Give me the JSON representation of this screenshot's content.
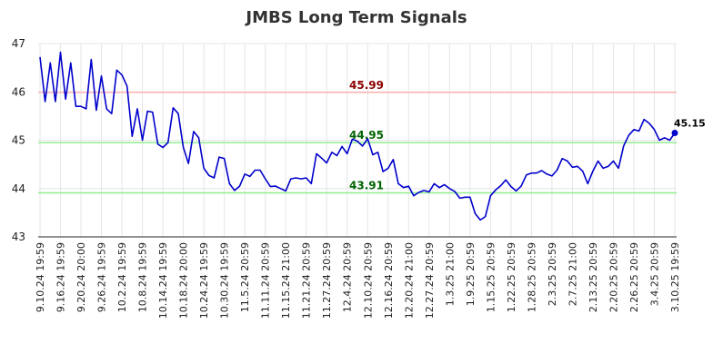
{
  "chart_data": {
    "type": "line",
    "title": "JMBS Long Term Signals",
    "xlabel": "",
    "ylabel": "",
    "ylim": [
      43,
      47
    ],
    "yticks": [
      43,
      44,
      45,
      46,
      47
    ],
    "grid": true,
    "x_tick_labels": [
      "9.10.24 19:59",
      "9.16.24 19:59",
      "9.20.24 20:00",
      "9.26.24 19:59",
      "10.2.24 19:59",
      "10.8.24 19:59",
      "10.14.24 19:59",
      "10.18.24 20:00",
      "10.24.24 19:59",
      "10.30.24 19:59",
      "11.5.24 20:59",
      "11.11.24 20:59",
      "11.15.24 21:00",
      "11.21.24 20:59",
      "11.27.24 20:59",
      "12.4.24 20:59",
      "12.10.24 20:59",
      "12.16.24 20:59",
      "12.20.24 21:00",
      "12.27.24 20:59",
      "1.3.25 21:00",
      "1.9.25 20:59",
      "1.15.25 20:59",
      "1.22.25 20:59",
      "1.28.25 20:59",
      "2.3.25 20:59",
      "2.7.25 21:00",
      "2.13.25 20:59",
      "2.20.25 20:59",
      "2.26.25 20:59",
      "3.4.25 20:59",
      "3.10.25 19:59"
    ],
    "reference_lines": [
      {
        "value": 45.99,
        "label": "45.99",
        "color": "#ffb3b3",
        "label_color": "#8b0000"
      },
      {
        "value": 44.95,
        "label": "44.95",
        "color": "#90ee90",
        "label_color": "#006400"
      },
      {
        "value": 43.91,
        "label": "43.91",
        "color": "#90ee90",
        "label_color": "#006400"
      }
    ],
    "series": [
      {
        "color": "#0000cc",
        "values": [
          46.72,
          45.8,
          46.6,
          45.8,
          46.82,
          45.85,
          46.6,
          45.7,
          45.7,
          45.65,
          46.67,
          45.62,
          46.33,
          45.65,
          45.55,
          46.45,
          46.35,
          46.12,
          45.08,
          45.65,
          45.0,
          45.6,
          45.58,
          44.92,
          44.85,
          44.95,
          45.67,
          45.55,
          44.85,
          44.52,
          45.18,
          45.05,
          44.42,
          44.27,
          44.22,
          44.65,
          44.62,
          44.1,
          43.96,
          44.05,
          44.3,
          44.25,
          44.38,
          44.38,
          44.2,
          44.04,
          44.05,
          44.0,
          43.95,
          44.2,
          44.22,
          44.2,
          44.22,
          44.1,
          44.72,
          44.63,
          44.53,
          44.75,
          44.68,
          44.87,
          44.72,
          45.02,
          44.98,
          44.88,
          45.03,
          44.7,
          44.75,
          44.35,
          44.42,
          44.6,
          44.1,
          44.02,
          44.05,
          43.85,
          43.92,
          43.96,
          43.93,
          44.1,
          44.02,
          44.08,
          44.0,
          43.94,
          43.8,
          43.82,
          43.82,
          43.48,
          43.35,
          43.42,
          43.85,
          43.97,
          44.06,
          44.18,
          44.04,
          43.95,
          44.05,
          44.28,
          44.32,
          44.32,
          44.37,
          44.3,
          44.26,
          44.38,
          44.62,
          44.57,
          44.44,
          44.46,
          44.36,
          44.1,
          44.36,
          44.57,
          44.42,
          44.46,
          44.57,
          44.42,
          44.88,
          45.1,
          45.22,
          45.19,
          45.43,
          45.35,
          45.22,
          45.0,
          45.05,
          45.0,
          45.15
        ]
      }
    ],
    "last_value_label": "45.15"
  }
}
